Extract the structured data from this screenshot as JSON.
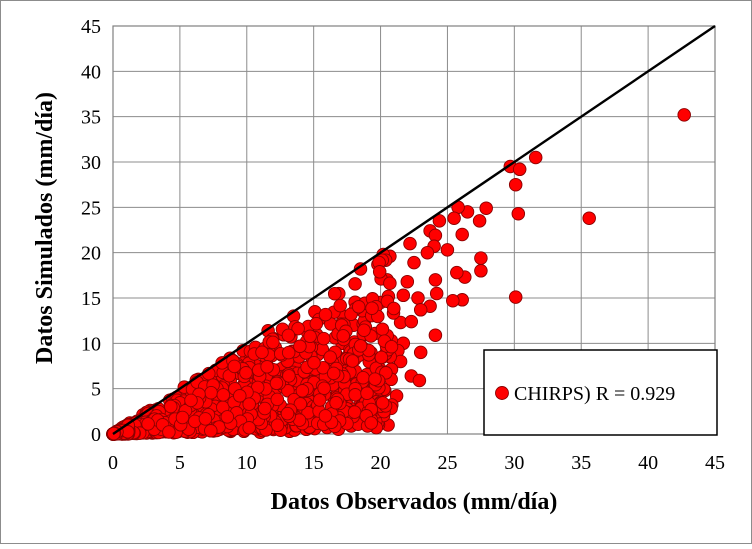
{
  "chart_data": {
    "type": "scatter",
    "title": "",
    "xlabel": "Datos Observados (mm/día)",
    "ylabel": "Datos Simulados (mm/día)",
    "xlim": [
      0,
      45
    ],
    "ylim": [
      0,
      45
    ],
    "xticks": [
      0,
      5,
      10,
      15,
      20,
      25,
      30,
      35,
      40,
      45
    ],
    "yticks": [
      0,
      5,
      10,
      15,
      20,
      25,
      30,
      35,
      40,
      45
    ],
    "grid": true,
    "legend_position": "bottom-right",
    "reference_line": {
      "x": [
        0,
        45
      ],
      "y": [
        0,
        45
      ],
      "color": "#000000"
    },
    "series": [
      {
        "name": "CHIRPS) R = 0.929",
        "color": "#ff0000",
        "edge_color": "#8b0000",
        "note_points": "dense cloud below the 1:1 line plus listed outliers",
        "points": [
          [
            42.7,
            35.2
          ],
          [
            31.6,
            30.5
          ],
          [
            29.7,
            29.5
          ],
          [
            30.4,
            29.2
          ],
          [
            30.1,
            27.5
          ],
          [
            30.3,
            24.3
          ],
          [
            35.6,
            23.8
          ],
          [
            30.1,
            15.1
          ],
          [
            27.9,
            24.9
          ],
          [
            27.4,
            23.5
          ],
          [
            27.5,
            19.4
          ],
          [
            27.5,
            18.0
          ],
          [
            26.5,
            24.5
          ],
          [
            25.8,
            25.0
          ],
          [
            25.5,
            23.8
          ],
          [
            26.1,
            22.0
          ],
          [
            26.3,
            17.3
          ],
          [
            25.7,
            17.8
          ],
          [
            26.1,
            14.8
          ],
          [
            25.4,
            14.7
          ],
          [
            24.4,
            23.5
          ],
          [
            23.7,
            22.4
          ],
          [
            24.1,
            21.9
          ],
          [
            24.0,
            20.7
          ],
          [
            23.5,
            20.0
          ],
          [
            25.0,
            20.3
          ],
          [
            24.1,
            17.0
          ],
          [
            23.7,
            14.1
          ],
          [
            22.8,
            15.0
          ],
          [
            24.2,
            15.5
          ],
          [
            24.1,
            10.9
          ],
          [
            23.0,
            13.7
          ],
          [
            22.2,
            21.0
          ],
          [
            22.5,
            18.9
          ],
          [
            22.0,
            16.8
          ],
          [
            21.7,
            15.3
          ],
          [
            21.5,
            12.3
          ],
          [
            22.3,
            12.4
          ],
          [
            21.7,
            10.0
          ],
          [
            21.3,
            9.2
          ],
          [
            23.0,
            9.0
          ],
          [
            21.5,
            8.0
          ],
          [
            22.3,
            6.4
          ],
          [
            22.9,
            5.9
          ],
          [
            21.2,
            4.2
          ],
          [
            20.7,
            19.6
          ],
          [
            20.5,
            17.0
          ],
          [
            20.0,
            14.5
          ],
          [
            20.8,
            10.3
          ],
          [
            19.5,
            7.8
          ],
          [
            18.5,
            18.2
          ],
          [
            18.0,
            12.0
          ],
          [
            17.8,
            6.2
          ],
          [
            16.5,
            4.0
          ],
          [
            15.5,
            2.2
          ],
          [
            14.2,
            1.0
          ],
          [
            13.2,
            0.3
          ],
          [
            12.0,
            0.5
          ],
          [
            11.0,
            0.2
          ],
          [
            18.2,
            5.5
          ],
          [
            17.2,
            3.2
          ],
          [
            19.2,
            13.5
          ],
          [
            13.5,
            13.0
          ],
          [
            20.2,
            19.8
          ],
          [
            19.8,
            18.7
          ]
        ]
      }
    ]
  }
}
